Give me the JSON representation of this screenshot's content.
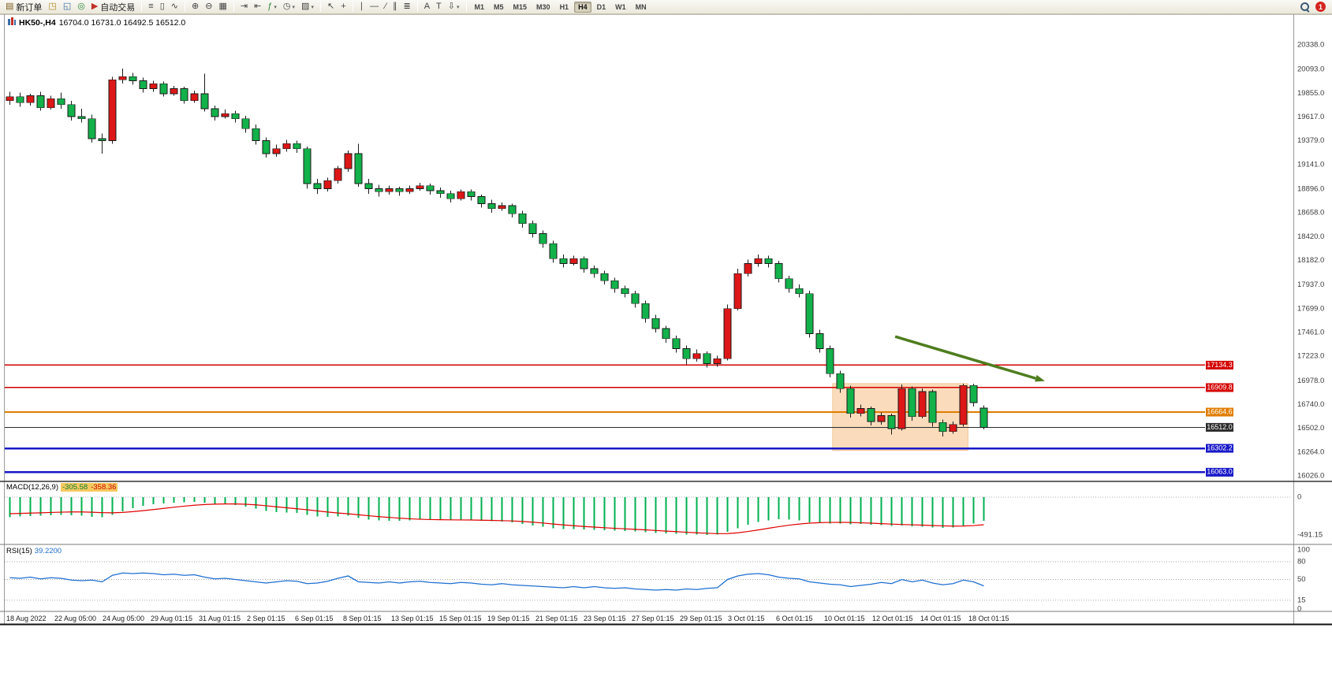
{
  "toolbar": {
    "items": [
      {
        "name": "new-order",
        "glyph": "▤",
        "label": "新订单",
        "color": "#7a5c20"
      },
      {
        "name": "market-watch",
        "glyph": "◳",
        "color": "#b08820"
      },
      {
        "name": "data-window",
        "glyph": "◱",
        "color": "#3a6ea5"
      },
      {
        "name": "navigator",
        "glyph": "◎",
        "color": "#2d8a3e"
      },
      {
        "name": "autotrading",
        "glyph": "▶",
        "label": "自动交易",
        "color": "#c03028"
      },
      {
        "separator": true
      },
      {
        "name": "chart-bars",
        "glyph": "≡",
        "color": "#444"
      },
      {
        "name": "chart-candles",
        "glyph": "▯",
        "color": "#444"
      },
      {
        "name": "chart-line",
        "glyph": "∿",
        "color": "#444"
      },
      {
        "separator": true
      },
      {
        "name": "zoom-in",
        "glyph": "⊕",
        "color": "#444"
      },
      {
        "name": "zoom-out",
        "glyph": "⊖",
        "color": "#444"
      },
      {
        "name": "tile-windows",
        "glyph": "▦",
        "color": "#444"
      },
      {
        "separator": true
      },
      {
        "name": "auto-scroll",
        "glyph": "⇥",
        "color": "#444"
      },
      {
        "name": "chart-shift",
        "glyph": "⇤",
        "color": "#444"
      },
      {
        "name": "indicators",
        "glyph": "ƒ",
        "arrow": true,
        "color": "#2d8a3e"
      },
      {
        "name": "periods",
        "glyph": "◷",
        "arrow": true,
        "color": "#444"
      },
      {
        "name": "templates",
        "glyph": "▨",
        "arrow": true,
        "color": "#444"
      },
      {
        "separator": true
      },
      {
        "name": "cursor",
        "glyph": "↖",
        "color": "#444"
      },
      {
        "name": "crosshair",
        "glyph": "+",
        "color": "#444"
      },
      {
        "separator": true
      },
      {
        "name": "vertical-line",
        "glyph": "∣",
        "color": "#444"
      },
      {
        "name": "horizontal-line",
        "glyph": "―",
        "color": "#444"
      },
      {
        "name": "trendline",
        "glyph": "∕",
        "color": "#444"
      },
      {
        "name": "equidistant-channel",
        "glyph": "∥",
        "color": "#444"
      },
      {
        "name": "fibonacci",
        "glyph": "≣",
        "color": "#444"
      },
      {
        "separator": true
      },
      {
        "name": "text",
        "glyph": "A",
        "color": "#444"
      },
      {
        "name": "text-label",
        "glyph": "T",
        "color": "#444"
      },
      {
        "name": "arrows",
        "glyph": "⇩",
        "arrow": true,
        "color": "#444"
      },
      {
        "separator": true
      }
    ],
    "timeframes": [
      "M1",
      "M5",
      "M15",
      "M30",
      "H1",
      "H4",
      "D1",
      "W1",
      "MN"
    ],
    "active_timeframe": "H4",
    "right": {
      "badge": "1"
    }
  },
  "chart": {
    "symbol_period": "HK50-,H4",
    "ohlc_text": "16704.0 16731.0 16492.5 16512.0"
  },
  "chart_data": {
    "type": "candlestick",
    "symbol_timeframe": "HK50-,H4",
    "ohlc_display": {
      "open": "16704.0",
      "high": "16731.0",
      "low": "16492.5",
      "close": "16512.0"
    },
    "colors": {
      "bull": "#dd1717",
      "bear": "#12b24a",
      "wick": "#1c1c1c",
      "macd_bar": "#00b050",
      "macd_signal": "#e00000",
      "rsi_line": "#1f6fd0",
      "arrow": "#4e7d1e",
      "box_fill": "rgba(246,190,132,0.55)",
      "box_edge": "rgba(232,160,80,0.8)"
    },
    "price_axis": {
      "labels": [
        "20338.0",
        "20093.0",
        "19855.0",
        "19617.0",
        "19379.0",
        "19141.0",
        "18896.0",
        "18658.0",
        "18420.0",
        "18182.0",
        "17937.0",
        "17699.0",
        "17461.0",
        "17223.0",
        "16978.0",
        "16740.0",
        "16502.0",
        "16264.0",
        "16026.0"
      ],
      "min": 15980,
      "max": 20575
    },
    "price_levels": [
      {
        "value": "17134.3",
        "price": 17134.3,
        "color": "#d40000",
        "width": 1.5
      },
      {
        "value": "16909.8",
        "price": 16909.8,
        "color": "#d40000",
        "width": 1.5
      },
      {
        "value": "16664.6",
        "price": 16664.6,
        "color": "#e07d00",
        "width": 2
      },
      {
        "value": "16512.0",
        "price": 16512.0,
        "color": "#2b2b2b",
        "width": 1
      },
      {
        "value": "16302.2",
        "price": 16302.2,
        "color": "#1818c8",
        "width": 2.5
      },
      {
        "value": "16063.0",
        "price": 16063.0,
        "color": "#1818c8",
        "width": 2.5
      }
    ],
    "highlight_box": {
      "start_candle": 80.6,
      "end_candle": 93.8,
      "price_top": 16950,
      "price_bottom": 16280
    },
    "trend_arrow": {
      "from_candle": 86.7,
      "from_price": 17420,
      "to_candle": 101.3,
      "to_price": 16975
    },
    "candles": [
      [
        19780,
        19870,
        19740,
        19820
      ],
      [
        19820,
        19860,
        19720,
        19760
      ],
      [
        19760,
        19850,
        19730,
        19830
      ],
      [
        19830,
        19870,
        19680,
        19710
      ],
      [
        19710,
        19830,
        19690,
        19800
      ],
      [
        19800,
        19860,
        19700,
        19740
      ],
      [
        19740,
        19780,
        19580,
        19620
      ],
      [
        19620,
        19700,
        19560,
        19600
      ],
      [
        19600,
        19640,
        19360,
        19400
      ],
      [
        19400,
        19450,
        19250,
        19380
      ],
      [
        19380,
        20020,
        19350,
        19990
      ],
      [
        19990,
        20100,
        19950,
        20020
      ],
      [
        20020,
        20060,
        19940,
        19980
      ],
      [
        19980,
        20010,
        19860,
        19900
      ],
      [
        19900,
        19980,
        19870,
        19950
      ],
      [
        19950,
        19970,
        19820,
        19850
      ],
      [
        19850,
        19930,
        19830,
        19900
      ],
      [
        19900,
        19920,
        19750,
        19780
      ],
      [
        19780,
        19880,
        19760,
        19850
      ],
      [
        19850,
        20050,
        19670,
        19700
      ],
      [
        19700,
        19730,
        19580,
        19620
      ],
      [
        19620,
        19690,
        19600,
        19650
      ],
      [
        19650,
        19680,
        19560,
        19600
      ],
      [
        19600,
        19630,
        19460,
        19500
      ],
      [
        19500,
        19540,
        19340,
        19380
      ],
      [
        19380,
        19410,
        19210,
        19250
      ],
      [
        19250,
        19340,
        19220,
        19300
      ],
      [
        19300,
        19390,
        19270,
        19350
      ],
      [
        19350,
        19380,
        19260,
        19300
      ],
      [
        19300,
        19320,
        18900,
        18950
      ],
      [
        18950,
        19000,
        18850,
        18900
      ],
      [
        18900,
        19010,
        18870,
        18980
      ],
      [
        18980,
        19130,
        18950,
        19100
      ],
      [
        19100,
        19280,
        19070,
        19250
      ],
      [
        19250,
        19350,
        18920,
        18950
      ],
      [
        18950,
        19000,
        18850,
        18900
      ],
      [
        18900,
        18940,
        18820,
        18870
      ],
      [
        18870,
        18930,
        18840,
        18900
      ],
      [
        18900,
        18920,
        18830,
        18870
      ],
      [
        18870,
        18930,
        18850,
        18900
      ],
      [
        18900,
        18960,
        18880,
        18930
      ],
      [
        18930,
        18950,
        18840,
        18880
      ],
      [
        18880,
        18910,
        18810,
        18850
      ],
      [
        18850,
        18880,
        18760,
        18800
      ],
      [
        18800,
        18890,
        18780,
        18870
      ],
      [
        18870,
        18890,
        18780,
        18820
      ],
      [
        18820,
        18840,
        18710,
        18750
      ],
      [
        18750,
        18790,
        18660,
        18700
      ],
      [
        18700,
        18760,
        18680,
        18730
      ],
      [
        18730,
        18750,
        18610,
        18650
      ],
      [
        18650,
        18680,
        18510,
        18550
      ],
      [
        18550,
        18580,
        18410,
        18450
      ],
      [
        18450,
        18480,
        18310,
        18350
      ],
      [
        18350,
        18380,
        18160,
        18200
      ],
      [
        18200,
        18240,
        18110,
        18150
      ],
      [
        18150,
        18230,
        18130,
        18200
      ],
      [
        18200,
        18220,
        18060,
        18100
      ],
      [
        18100,
        18130,
        18010,
        18050
      ],
      [
        18050,
        18080,
        17940,
        17980
      ],
      [
        17980,
        18010,
        17860,
        17900
      ],
      [
        17900,
        17930,
        17810,
        17850
      ],
      [
        17850,
        17880,
        17710,
        17750
      ],
      [
        17750,
        17780,
        17560,
        17600
      ],
      [
        17600,
        17640,
        17460,
        17500
      ],
      [
        17500,
        17530,
        17360,
        17400
      ],
      [
        17400,
        17430,
        17260,
        17300
      ],
      [
        17300,
        17330,
        17140,
        17200
      ],
      [
        17200,
        17290,
        17170,
        17250
      ],
      [
        17250,
        17270,
        17110,
        17150
      ],
      [
        17150,
        17230,
        17120,
        17200
      ],
      [
        17200,
        17740,
        17180,
        17700
      ],
      [
        17700,
        18100,
        17680,
        18050
      ],
      [
        18050,
        18190,
        18020,
        18150
      ],
      [
        18150,
        18240,
        18120,
        18200
      ],
      [
        18200,
        18230,
        18110,
        18150
      ],
      [
        18150,
        18180,
        17960,
        18000
      ],
      [
        18000,
        18030,
        17860,
        17900
      ],
      [
        17900,
        17940,
        17810,
        17850
      ],
      [
        17850,
        17880,
        17410,
        17450
      ],
      [
        17450,
        17490,
        17260,
        17300
      ],
      [
        17300,
        17330,
        17010,
        17050
      ],
      [
        17050,
        17080,
        16860,
        16900
      ],
      [
        16900,
        16930,
        16610,
        16650
      ],
      [
        16650,
        16740,
        16620,
        16700
      ],
      [
        16700,
        16720,
        16530,
        16570
      ],
      [
        16570,
        16660,
        16540,
        16630
      ],
      [
        16630,
        16650,
        16440,
        16500
      ],
      [
        16500,
        16940,
        16480,
        16900
      ],
      [
        16900,
        16920,
        16580,
        16620
      ],
      [
        16620,
        16900,
        16600,
        16870
      ],
      [
        16870,
        16890,
        16520,
        16560
      ],
      [
        16560,
        16590,
        16420,
        16470
      ],
      [
        16470,
        16570,
        16450,
        16540
      ],
      [
        16540,
        16950,
        16520,
        16930
      ],
      [
        16930,
        16950,
        16720,
        16760
      ],
      [
        16704,
        16731,
        16492.5,
        16512
      ]
    ],
    "indicators": {
      "macd": {
        "label": "MACD(12,26,9)",
        "value": "-305.58",
        "signal_value": "-358.36",
        "scale_labels": [
          "0",
          "-491.15"
        ],
        "histogram": [
          -260,
          -252,
          -246,
          -240,
          -236,
          -230,
          -234,
          -242,
          -256,
          -262,
          -232,
          -184,
          -142,
          -112,
          -92,
          -80,
          -72,
          -66,
          -62,
          -72,
          -86,
          -92,
          -102,
          -122,
          -150,
          -180,
          -196,
          -202,
          -206,
          -232,
          -252,
          -256,
          -250,
          -242,
          -272,
          -290,
          -300,
          -306,
          -306,
          -300,
          -294,
          -290,
          -290,
          -294,
          -290,
          -296,
          -306,
          -314,
          -316,
          -326,
          -346,
          -366,
          -386,
          -404,
          -414,
          -416,
          -420,
          -426,
          -430,
          -436,
          -440,
          -446,
          -456,
          -466,
          -470,
          -478,
          -484,
          -488,
          -491,
          -486,
          -452,
          -402,
          -356,
          -322,
          -300,
          -288,
          -292,
          -304,
          -326,
          -338,
          -344,
          -342,
          -352,
          -348,
          -358,
          -364,
          -374,
          -368,
          -380,
          -386,
          -396,
          -400,
          -392,
          -372,
          -342,
          -305.58
        ],
        "signal": [
          -215,
          -211,
          -207,
          -203,
          -199,
          -195,
          -192,
          -192,
          -196,
          -201,
          -203,
          -198,
          -188,
          -175,
          -161,
          -146,
          -131,
          -117,
          -105,
          -96,
          -91,
          -88,
          -88,
          -92,
          -100,
          -112,
          -125,
          -138,
          -151,
          -164,
          -179,
          -193,
          -206,
          -216,
          -229,
          -241,
          -253,
          -263,
          -273,
          -281,
          -287,
          -291,
          -293,
          -295,
          -296,
          -297,
          -299,
          -302,
          -305,
          -309,
          -316,
          -325,
          -336,
          -349,
          -361,
          -371,
          -381,
          -389,
          -397,
          -405,
          -411,
          -418,
          -425,
          -433,
          -441,
          -448,
          -456,
          -463,
          -469,
          -474,
          -473,
          -463,
          -446,
          -426,
          -404,
          -383,
          -364,
          -349,
          -338,
          -331,
          -328,
          -327,
          -329,
          -333,
          -338,
          -344,
          -350,
          -355,
          -359,
          -363,
          -368,
          -373,
          -376,
          -375,
          -369,
          -358.36
        ]
      },
      "rsi": {
        "label": "RSI(15)",
        "value": "39.2200",
        "scale_labels": [
          "100",
          "80",
          "50",
          "15",
          "0"
        ],
        "levels": [
          80,
          50,
          15
        ],
        "values": [
          53,
          52,
          54,
          51,
          53,
          52,
          49,
          48,
          49,
          46,
          57,
          61,
          60,
          61,
          60,
          58,
          59,
          57,
          58,
          54,
          51,
          52,
          50,
          48,
          46,
          44,
          46,
          48,
          47,
          43,
          44,
          47,
          52,
          56,
          46,
          45,
          44,
          46,
          44,
          46,
          47,
          45,
          44,
          43,
          45,
          44,
          42,
          41,
          43,
          41,
          40,
          39,
          38,
          37,
          36,
          38,
          36,
          38,
          36,
          35,
          36,
          34,
          33,
          32,
          33,
          32,
          34,
          33,
          35,
          36,
          50,
          56,
          59,
          60,
          58,
          54,
          52,
          51,
          46,
          44,
          42,
          41,
          38,
          40,
          42,
          45,
          43,
          50,
          46,
          49,
          44,
          41,
          43,
          49,
          46,
          39.22
        ]
      }
    },
    "time_axis": [
      "18 Aug 2022",
      "22 Aug 05:00",
      "24 Aug 05:00",
      "29 Aug 01:15",
      "31 Aug 01:15",
      "2 Sep 01:15",
      "6 Sep 01:15",
      "8 Sep 01:15",
      "13 Sep 01:15",
      "15 Sep 01:15",
      "19 Sep 01:15",
      "21 Sep 01:15",
      "23 Sep 01:15",
      "27 Sep 01:15",
      "29 Sep 01:15",
      "3 Oct 01:15",
      "6 Oct 01:15",
      "10 Oct 01:15",
      "12 Oct 01:15",
      "14 Oct 01:15",
      "18 Oct 01:15"
    ]
  }
}
